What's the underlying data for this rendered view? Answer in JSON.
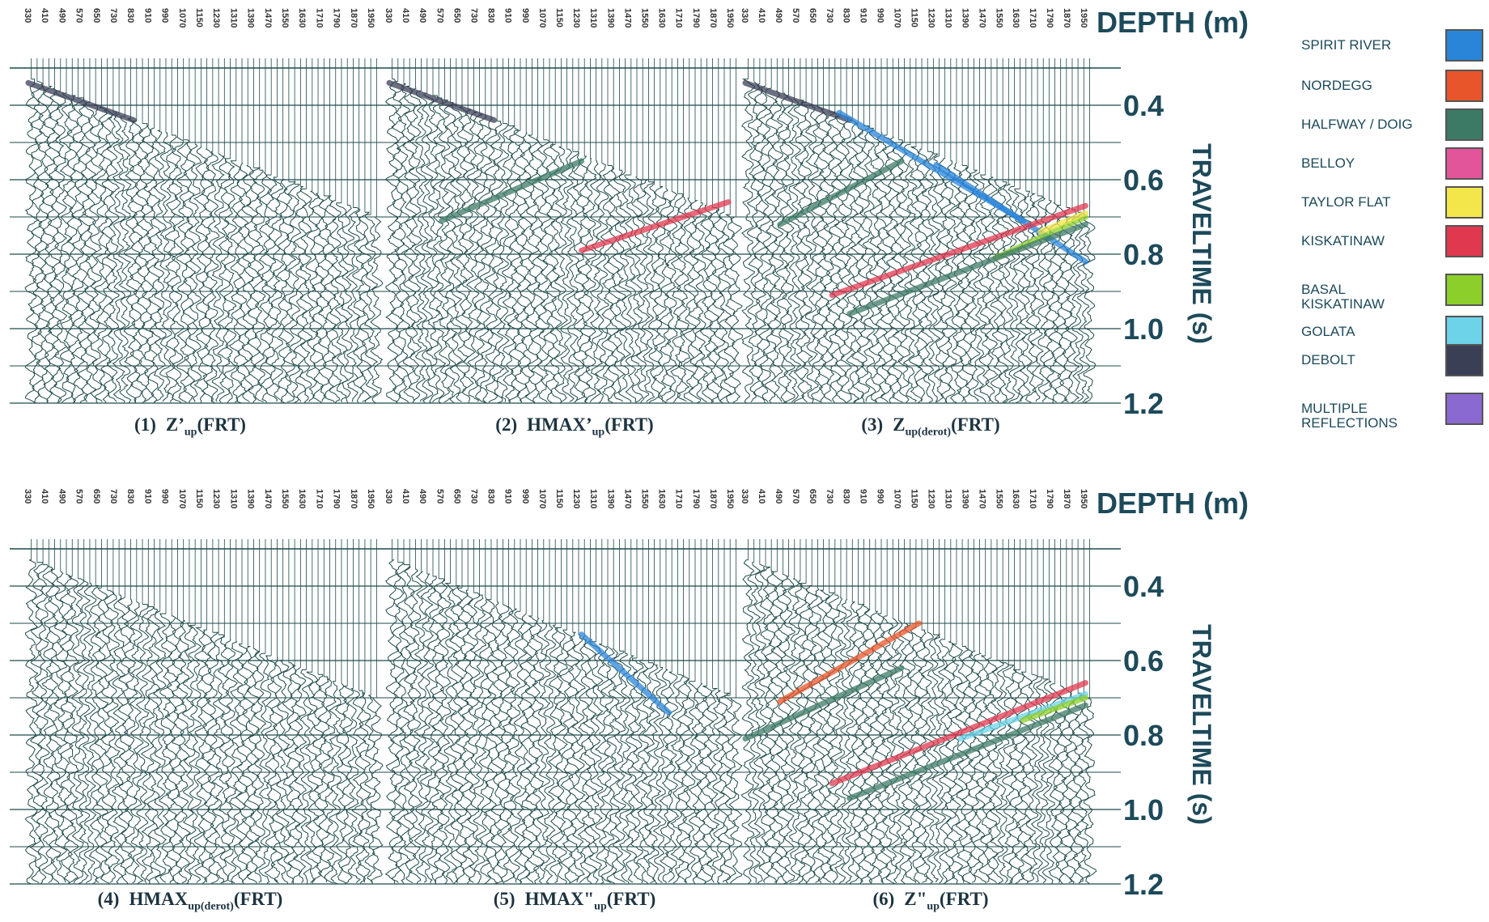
{
  "header": {
    "depth_title": "DEPTH (m)",
    "time_title": "TRAVELTIME (s)"
  },
  "depth_labels": [
    330,
    410,
    490,
    570,
    650,
    730,
    830,
    910,
    990,
    1070,
    1150,
    1230,
    1310,
    1390,
    1470,
    1550,
    1630,
    1710,
    1790,
    1870,
    1950
  ],
  "time_ticks": [
    "0.4",
    "0.6",
    "0.8",
    "1.0",
    "1.2"
  ],
  "panels": [
    {
      "number": "(1)",
      "name": "Z’",
      "sub": "up",
      "suffix": "(FRT)"
    },
    {
      "number": "(2)",
      "name": "HMAX’",
      "sub": "up",
      "suffix": "(FRT)"
    },
    {
      "number": "(3)",
      "name": "Z",
      "sub": "up(derot)",
      "suffix": "(FRT)"
    },
    {
      "number": "(4)",
      "name": "HMAX",
      "sub": "up(derot)",
      "suffix": "(FRT)"
    },
    {
      "number": "(5)",
      "name": "HMAX\"",
      "sub": "up",
      "suffix": "(FRT)"
    },
    {
      "number": "(6)",
      "name": "Z\"",
      "sub": "up",
      "suffix": "(FRT)"
    }
  ],
  "legend": [
    {
      "label": "SPIRIT RIVER",
      "color": "#2a84d8"
    },
    {
      "label": "NORDEGG",
      "color": "#e8552a"
    },
    {
      "label": "HALFWAY / DOIG",
      "color": "#3d7a66"
    },
    {
      "label": "BELLOY",
      "color": "#e3559a"
    },
    {
      "label": "TAYLOR FLAT",
      "color": "#f2e64a"
    },
    {
      "label": "KISKATINAW",
      "color": "#e0384f"
    },
    {
      "label": "BASAL KISKATINAW",
      "color": "#8ccf2a"
    },
    {
      "label": "GOLATA",
      "color": "#6cd3e8"
    },
    {
      "label": "DEBOLT",
      "color": "#3a3f55"
    },
    {
      "label": "MULTIPLE REFLECTIONS",
      "color": "#8a6ad0"
    }
  ]
}
